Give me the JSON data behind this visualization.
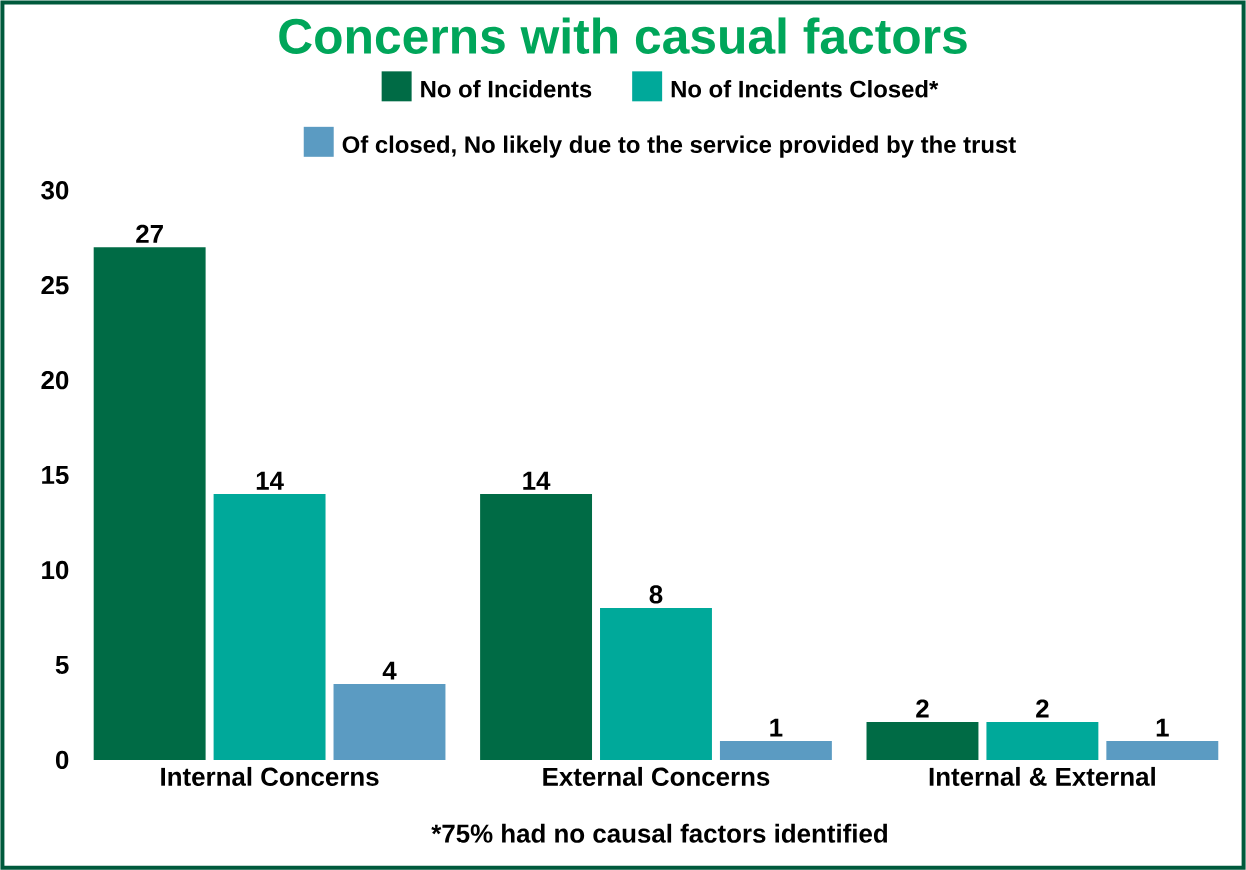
{
  "chart_data": {
    "type": "bar",
    "title": "Concerns with casual factors",
    "categories": [
      "Internal Concerns",
      "External Concerns",
      "Internal & External"
    ],
    "series": [
      {
        "name": "No of Incidents",
        "color": "#006b45",
        "values": [
          27,
          14,
          2
        ]
      },
      {
        "name": "No of Incidents Closed*",
        "color": "#00a99a",
        "values": [
          14,
          8,
          2
        ]
      },
      {
        "name": "Of closed, No likely due to the service provided by the trust",
        "color": "#5b9bc2",
        "values": [
          4,
          1,
          1
        ]
      }
    ],
    "ylim": [
      0,
      30
    ],
    "yticks": [
      0,
      5,
      10,
      15,
      20,
      25,
      30
    ],
    "grid": false,
    "legend": "top",
    "data_labels": true,
    "annotations": [
      "*75% had no causal factors identified"
    ]
  }
}
